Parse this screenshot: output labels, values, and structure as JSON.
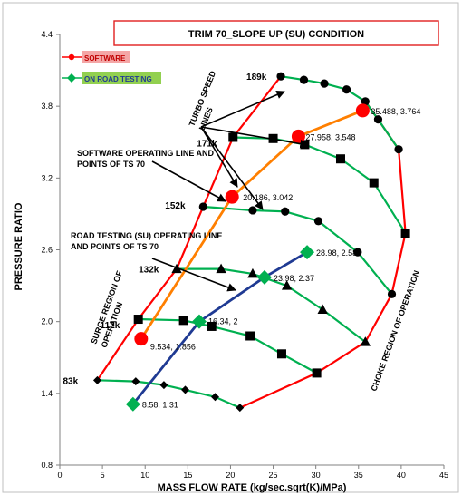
{
  "chart_data": {
    "type": "line",
    "title": "TRIM  70_SLOPE UP (SU) CONDITION",
    "xlabel": "MASS FLOW RATE (kg/sec.sqrt(K)/MPa)",
    "ylabel": "PRESSURE RATIO",
    "xlim": [
      0,
      45
    ],
    "ylim": [
      0.8,
      4.4
    ],
    "x_ticks": [
      0,
      5,
      10,
      15,
      20,
      25,
      30,
      35,
      40,
      45
    ],
    "y_ticks": [
      0.8,
      1.4,
      2.0,
      2.6,
      3.2,
      3.8,
      4.4
    ],
    "grid": false,
    "legend_position": "top-left",
    "legend": [
      {
        "label": "SOFTWARE",
        "marker": "circle",
        "color": "#ff0000"
      },
      {
        "label": "ON  ROAD TESTING",
        "marker": "diamond",
        "color": "#00b050"
      }
    ],
    "speed_lines": [
      {
        "name": "83k",
        "marker": "diamond",
        "color": "#00b050",
        "points": [
          [
            4.4,
            1.51
          ],
          [
            8.9,
            1.5
          ],
          [
            12.2,
            1.47
          ],
          [
            14.7,
            1.43
          ],
          [
            18.2,
            1.37
          ],
          [
            21.1,
            1.28
          ]
        ]
      },
      {
        "name": "112k",
        "marker": "square",
        "color": "#00b050",
        "points": [
          [
            9.2,
            2.02
          ],
          [
            14.5,
            2.01
          ],
          [
            17.8,
            1.96
          ],
          [
            22.3,
            1.88
          ],
          [
            26.0,
            1.73
          ],
          [
            30.1,
            1.57
          ]
        ]
      },
      {
        "name": "132k",
        "marker": "triangle",
        "color": "#00b050",
        "points": [
          [
            13.7,
            2.44
          ],
          [
            18.9,
            2.44
          ],
          [
            22.6,
            2.4
          ],
          [
            26.6,
            2.3
          ],
          [
            30.8,
            2.1
          ],
          [
            35.8,
            1.83
          ]
        ]
      },
      {
        "name": "152k",
        "marker": "circle",
        "color": "#00b050",
        "points": [
          [
            16.8,
            2.96
          ],
          [
            22.6,
            2.93
          ],
          [
            26.4,
            2.92
          ],
          [
            30.3,
            2.84
          ],
          [
            34.9,
            2.58
          ],
          [
            38.9,
            2.23
          ]
        ]
      },
      {
        "name": "171k",
        "marker": "square",
        "color": "#00b050",
        "points": [
          [
            20.3,
            3.54
          ],
          [
            25.0,
            3.53
          ],
          [
            28.7,
            3.48
          ],
          [
            32.9,
            3.36
          ],
          [
            36.8,
            3.16
          ],
          [
            40.5,
            2.74
          ]
        ]
      },
      {
        "name": "189k",
        "marker": "circle",
        "color": "#00b050",
        "points": [
          [
            25.9,
            4.05
          ],
          [
            28.6,
            4.02
          ],
          [
            31.0,
            3.99
          ],
          [
            33.6,
            3.94
          ],
          [
            35.8,
            3.84
          ],
          [
            37.3,
            3.69
          ],
          [
            39.7,
            3.44
          ]
        ]
      }
    ],
    "envelopes": [
      {
        "name": "surge",
        "color": "#ff0000",
        "points": [
          [
            4.4,
            1.51
          ],
          [
            9.2,
            2.02
          ],
          [
            13.7,
            2.44
          ],
          [
            16.8,
            2.96
          ],
          [
            20.3,
            3.54
          ],
          [
            25.9,
            4.05
          ]
        ]
      },
      {
        "name": "choke",
        "color": "#ff0000",
        "points": [
          [
            21.1,
            1.28
          ],
          [
            30.1,
            1.57
          ],
          [
            35.8,
            1.83
          ],
          [
            38.9,
            2.23
          ],
          [
            40.5,
            2.74
          ],
          [
            39.7,
            3.44
          ],
          [
            37.3,
            3.69
          ],
          [
            35.8,
            3.84
          ]
        ]
      }
    ],
    "series": [
      {
        "name": "SOFTWARE",
        "color": "#ff0000",
        "marker": "circle",
        "line_color": "#ff7f00",
        "points": [
          [
            9.534,
            1.856
          ],
          [
            20.186,
            3.042
          ],
          [
            27.958,
            3.548
          ],
          [
            35.488,
            3.764
          ]
        ]
      },
      {
        "name": "ON  ROAD TESTING",
        "color": "#00b050",
        "marker": "diamond",
        "line_color": "#1f3a93",
        "points": [
          [
            8.58,
            1.31
          ],
          [
            16.34,
            2.0
          ],
          [
            23.98,
            2.37
          ],
          [
            28.98,
            2.58
          ]
        ]
      }
    ],
    "point_labels": [
      {
        "text": "35.488, 3.764",
        "x": 35.488,
        "y": 3.764
      },
      {
        "text": "27.958, 3.548",
        "x": 27.958,
        "y": 3.548
      },
      {
        "text": "20.186, 3.042",
        "x": 20.186,
        "y": 3.042
      },
      {
        "text": "9.534, 1.856",
        "x": 9.534,
        "y": 1.856
      },
      {
        "text": "28.98, 2.58",
        "x": 28.98,
        "y": 2.58
      },
      {
        "text": "23.98, 2.37",
        "x": 23.98,
        "y": 2.37
      },
      {
        "text": "16.34, 2",
        "x": 16.34,
        "y": 2.0
      },
      {
        "text": "8.58, 1.31",
        "x": 8.58,
        "y": 1.31
      }
    ],
    "annotations": [
      {
        "id": "turbo",
        "lines": [
          "TURBO SPEED",
          "LINES"
        ],
        "rotate": -70
      },
      {
        "id": "software-op",
        "lines": [
          "SOFTWARE  OPERATING LINE AND",
          "POINTS  OF TS 70"
        ]
      },
      {
        "id": "road-op",
        "lines": [
          "ROAD TESTING (SU)  OPERATING  LINE",
          "AND POINTS OF TS 70"
        ]
      },
      {
        "id": "surge-region",
        "lines": [
          "SURGE REGION OF",
          "OPERATION"
        ],
        "rotate": -70
      },
      {
        "id": "choke-region",
        "lines": [
          "CHOKE REGION OF OPERATION"
        ],
        "rotate": -70
      }
    ]
  }
}
